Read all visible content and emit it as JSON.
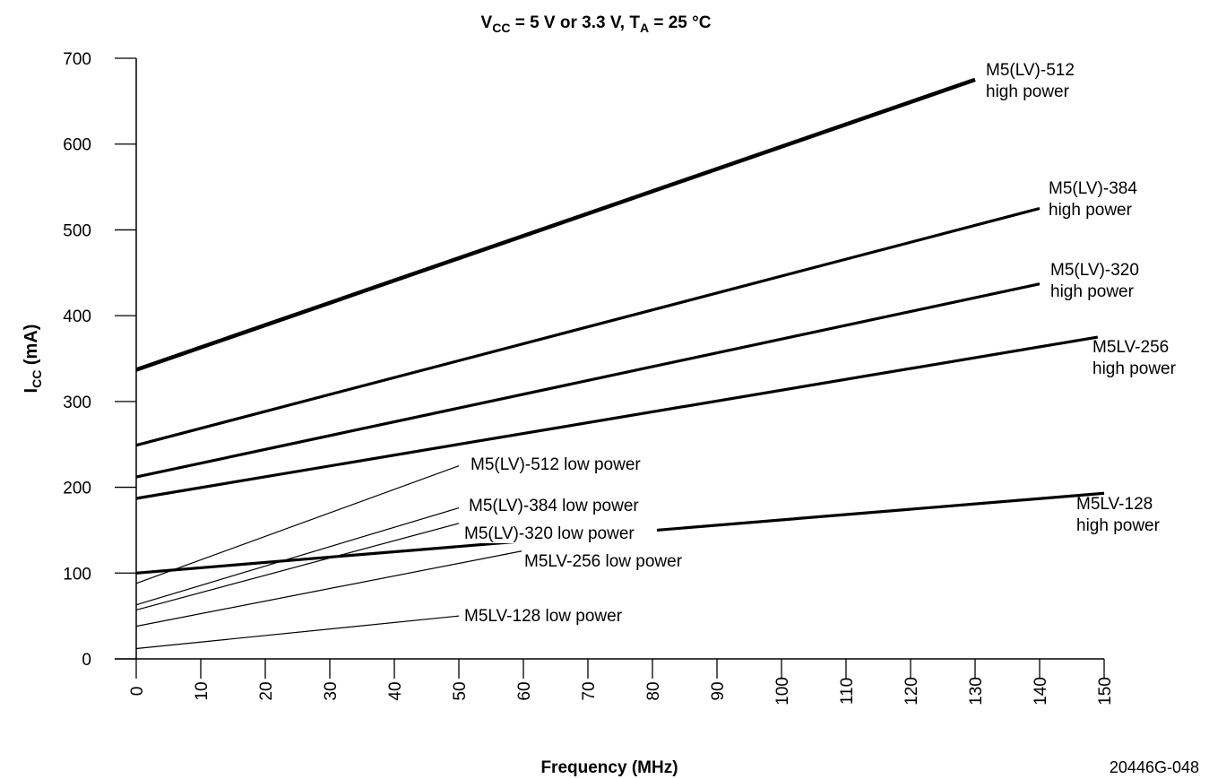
{
  "chart_data": {
    "type": "line",
    "title": {
      "prefix": "V",
      "sub1": "CC",
      "mid": " = 5 V or 3.3 V, T",
      "sub2": "A",
      "suffix": " = 25 °C"
    },
    "xlabel": "Frequency (MHz)",
    "ylabel": {
      "main": "I",
      "sub": "CC",
      "rest": " (mA)"
    },
    "xlim": [
      0,
      150
    ],
    "ylim": [
      0,
      700
    ],
    "x_ticks": [
      "0",
      "10",
      "20",
      "30",
      "40",
      "50",
      "60",
      "70",
      "80",
      "90",
      "100",
      "110",
      "120",
      "130",
      "140",
      "150"
    ],
    "y_ticks": [
      "0",
      "100",
      "200",
      "300",
      "400",
      "500",
      "600",
      "700"
    ],
    "grid": false,
    "legend": "inline labels",
    "series": [
      {
        "name": "M5(LV)-512 high power",
        "label_lines": [
          "M5(LV)-512",
          "high power"
        ],
        "x": [
          0,
          130
        ],
        "y": [
          337,
          675
        ],
        "weight": "heavy"
      },
      {
        "name": "M5(LV)-384 high power",
        "label_lines": [
          "M5(LV)-384",
          "high power"
        ],
        "x": [
          0,
          140
        ],
        "y": [
          249,
          525
        ],
        "weight": "bold"
      },
      {
        "name": "M5(LV)-320 high power",
        "label_lines": [
          "M5(LV)-320",
          "high power"
        ],
        "x": [
          0,
          140
        ],
        "y": [
          212,
          437
        ],
        "weight": "bold"
      },
      {
        "name": "M5LV-256 high power",
        "label_lines": [
          "M5LV-256",
          "high power"
        ],
        "x": [
          0,
          149
        ],
        "y": [
          187,
          375
        ],
        "weight": "bold"
      },
      {
        "name": "M5LV-128 high power",
        "label_lines": [
          "M5LV-128",
          "high power"
        ],
        "x": [
          0,
          150
        ],
        "y": [
          100,
          193
        ],
        "weight": "bold"
      },
      {
        "name": "M5(LV)-512 low power",
        "label_lines": [
          "M5(LV)-512 low power"
        ],
        "x": [
          0,
          50
        ],
        "y": [
          88,
          225
        ],
        "weight": "thin"
      },
      {
        "name": "M5(LV)-384 low power",
        "label_lines": [
          "M5(LV)-384 low power"
        ],
        "x": [
          0,
          50
        ],
        "y": [
          63,
          176
        ],
        "weight": "thin"
      },
      {
        "name": "M5(LV)-320 low power",
        "label_lines": [
          "M5(LV)-320 low power"
        ],
        "x": [
          0,
          50
        ],
        "y": [
          57,
          158
        ],
        "weight": "thin"
      },
      {
        "name": "M5LV-256 low power",
        "label_lines": [
          "M5LV-256 low power"
        ],
        "x": [
          0,
          60
        ],
        "y": [
          38,
          126
        ],
        "weight": "thin"
      },
      {
        "name": "M5LV-128 low power",
        "label_lines": [
          "M5LV-128 low power"
        ],
        "x": [
          0,
          50
        ],
        "y": [
          12,
          50
        ],
        "weight": "thin"
      }
    ],
    "figure_id": "20446G-048"
  }
}
